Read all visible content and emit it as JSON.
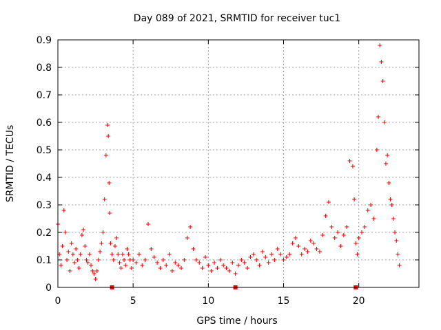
{
  "chart_data": {
    "type": "scatter",
    "title": "Day 089 of 2021, SRMTID for receiver tuc1",
    "xlabel": "GPS time / hours",
    "ylabel": "SRMTID / TECUs",
    "xlim": [
      0,
      24
    ],
    "ylim": [
      0,
      0.9
    ],
    "x_ticks": [
      "0",
      "5",
      "10",
      "15",
      "20"
    ],
    "y_ticks": [
      "0",
      "0.1",
      "0.2",
      "0.3",
      "0.4",
      "0.5",
      "0.6",
      "0.7",
      "0.8",
      "0.9"
    ],
    "grid": true,
    "marker": "+",
    "series": [
      {
        "name": "SRMTID",
        "color": "#ff0000",
        "x": [
          0.0,
          0.1,
          0.2,
          0.3,
          0.4,
          0.5,
          0.6,
          0.7,
          0.8,
          0.9,
          1.0,
          1.1,
          1.2,
          1.3,
          1.4,
          1.5,
          1.6,
          1.7,
          1.8,
          1.9,
          2.0,
          2.1,
          2.2,
          2.3,
          2.4,
          2.5,
          2.6,
          2.7,
          2.8,
          2.9,
          3.0,
          3.1,
          3.2,
          3.3,
          3.35,
          3.4,
          3.45,
          3.5,
          3.6,
          3.7,
          3.8,
          3.9,
          4.0,
          4.1,
          4.2,
          4.3,
          4.4,
          4.5,
          4.6,
          4.7,
          4.8,
          4.9,
          5.0,
          5.2,
          5.4,
          5.6,
          5.8,
          6.0,
          6.2,
          6.4,
          6.6,
          6.8,
          7.0,
          7.2,
          7.4,
          7.6,
          7.8,
          8.0,
          8.2,
          8.4,
          8.6,
          8.8,
          9.0,
          9.2,
          9.4,
          9.6,
          9.8,
          10.0,
          10.2,
          10.4,
          10.6,
          10.8,
          11.0,
          11.2,
          11.4,
          11.6,
          11.8,
          12.0,
          12.2,
          12.4,
          12.6,
          12.8,
          13.0,
          13.2,
          13.4,
          13.6,
          13.8,
          14.0,
          14.2,
          14.4,
          14.6,
          14.8,
          15.0,
          15.2,
          15.4,
          15.6,
          15.8,
          16.0,
          16.2,
          16.4,
          16.6,
          16.8,
          17.0,
          17.2,
          17.4,
          17.6,
          17.8,
          18.0,
          18.2,
          18.4,
          18.6,
          18.8,
          19.0,
          19.2,
          19.4,
          19.6,
          19.7,
          19.8,
          19.9,
          20.0,
          20.2,
          20.4,
          20.6,
          20.8,
          21.0,
          21.2,
          21.3,
          21.4,
          21.5,
          21.6,
          21.7,
          21.8,
          21.9,
          22.0,
          22.1,
          22.2,
          22.3,
          22.4,
          22.5,
          22.6,
          22.7
        ],
        "y": [
          0.23,
          0.12,
          0.08,
          0.15,
          0.28,
          0.2,
          0.1,
          0.13,
          0.06,
          0.16,
          0.12,
          0.09,
          0.14,
          0.1,
          0.07,
          0.12,
          0.19,
          0.21,
          0.15,
          0.1,
          0.09,
          0.12,
          0.08,
          0.06,
          0.05,
          0.03,
          0.06,
          0.1,
          0.13,
          0.16,
          0.2,
          0.32,
          0.48,
          0.59,
          0.55,
          0.38,
          0.27,
          0.16,
          0.12,
          0.1,
          0.15,
          0.18,
          0.12,
          0.09,
          0.07,
          0.12,
          0.1,
          0.08,
          0.14,
          0.12,
          0.1,
          0.07,
          0.1,
          0.09,
          0.12,
          0.08,
          0.1,
          0.23,
          0.14,
          0.11,
          0.09,
          0.07,
          0.1,
          0.08,
          0.12,
          0.06,
          0.09,
          0.08,
          0.07,
          0.1,
          0.18,
          0.22,
          0.14,
          0.1,
          0.09,
          0.07,
          0.11,
          0.08,
          0.06,
          0.09,
          0.07,
          0.1,
          0.08,
          0.07,
          0.06,
          0.09,
          0.05,
          0.08,
          0.1,
          0.09,
          0.07,
          0.11,
          0.12,
          0.1,
          0.08,
          0.13,
          0.11,
          0.09,
          0.12,
          0.1,
          0.14,
          0.12,
          0.1,
          0.11,
          0.12,
          0.16,
          0.18,
          0.15,
          0.12,
          0.14,
          0.13,
          0.17,
          0.16,
          0.14,
          0.13,
          0.19,
          0.26,
          0.31,
          0.22,
          0.18,
          0.2,
          0.15,
          0.19,
          0.22,
          0.46,
          0.44,
          0.32,
          0.16,
          0.12,
          0.18,
          0.2,
          0.22,
          0.28,
          0.3,
          0.25,
          0.5,
          0.62,
          0.88,
          0.82,
          0.75,
          0.6,
          0.45,
          0.48,
          0.38,
          0.32,
          0.3,
          0.25,
          0.2,
          0.17,
          0.12,
          0.08
        ]
      }
    ],
    "marker_squares_x": [
      3.6,
      11.8,
      19.8
    ]
  }
}
